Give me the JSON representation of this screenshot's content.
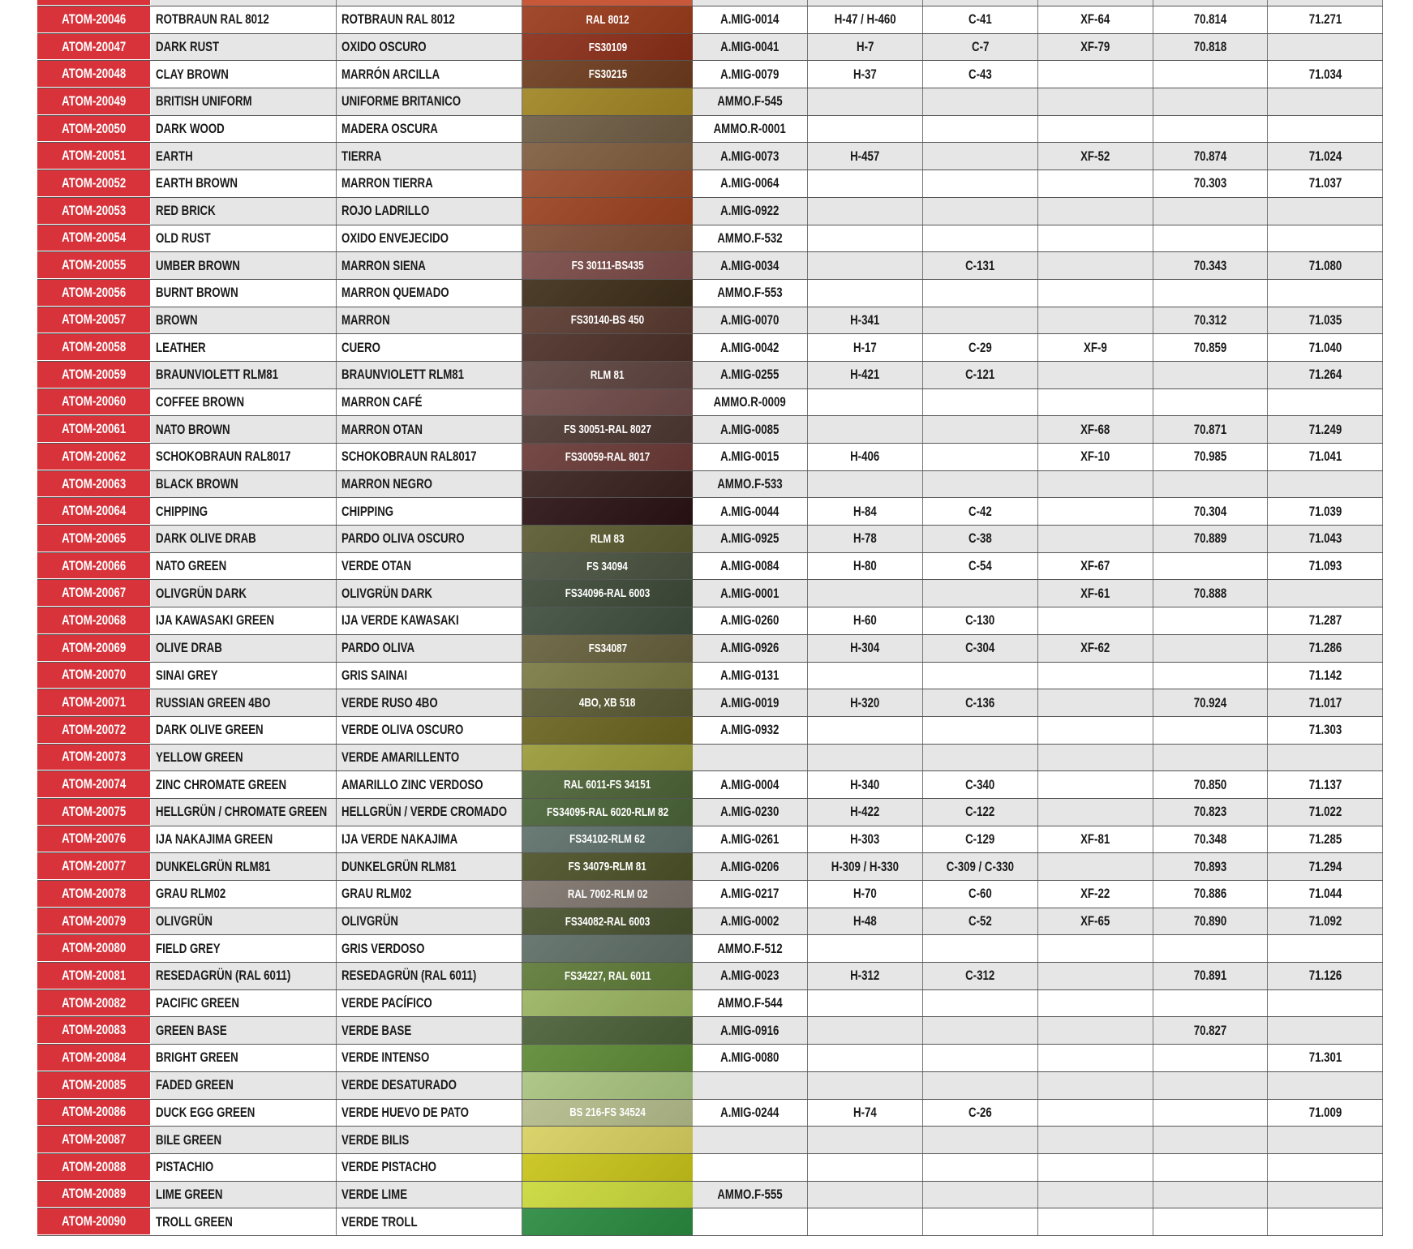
{
  "accent_color": "#d8323a",
  "partial_top_row": {
    "swatch_color": "#c8583a"
  },
  "rows": [
    {
      "code": "ATOM-20046",
      "name": "ROTBRAUN RAL 8012",
      "name_es": "ROTBRAUN RAL 8012",
      "swatch_label": "RAL 8012",
      "color": "#9a3b1c",
      "amig": "A.MIG-0014",
      "h": "H-47 / H-460",
      "c": "C-41",
      "xf": "XF-64",
      "v70": "70.814",
      "v71": "71.271"
    },
    {
      "code": "ATOM-20047",
      "name": "DARK RUST",
      "name_es": "OXIDO OSCURO",
      "swatch_label": "FS30109",
      "color": "#8a2e18",
      "amig": "A.MIG-0041",
      "h": "H-7",
      "c": "C-7",
      "xf": "XF-79",
      "v70": "70.818",
      "v71": ""
    },
    {
      "code": "ATOM-20048",
      "name": "CLAY BROWN",
      "name_es": "MARRÓN ARCILLA",
      "swatch_label": "FS30215",
      "color": "#6e3c1e",
      "amig": "A.MIG-0079",
      "h": "H-37",
      "c": "C-43",
      "xf": "",
      "v70": "",
      "v71": "71.034"
    },
    {
      "code": "ATOM-20049",
      "name": "BRITISH UNIFORM",
      "name_es": "UNIFORME BRITANICO",
      "swatch_label": "",
      "color": "#a08423",
      "amig": "AMMO.F-545",
      "h": "",
      "c": "",
      "xf": "",
      "v70": "",
      "v71": ""
    },
    {
      "code": "ATOM-20050",
      "name": "DARK WOOD",
      "name_es": "MADERA OSCURA",
      "swatch_label": "",
      "color": "#6e5c44",
      "amig": "AMMO.R-0001",
      "h": "",
      "c": "",
      "xf": "",
      "v70": "",
      "v71": ""
    },
    {
      "code": "ATOM-20051",
      "name": "EARTH",
      "name_es": "TIERRA",
      "swatch_label": "",
      "color": "#7f5d3e",
      "amig": "A.MIG-0073",
      "h": "H-457",
      "c": "",
      "xf": "XF-52",
      "v70": "70.874",
      "v71": "71.024"
    },
    {
      "code": "ATOM-20052",
      "name": "EARTH BROWN",
      "name_es": "MARRON TIERRA",
      "swatch_label": "",
      "color": "#9a4a2a",
      "amig": "A.MIG-0064",
      "h": "",
      "c": "",
      "xf": "",
      "v70": "70.303",
      "v71": "71.037"
    },
    {
      "code": "ATOM-20053",
      "name": "RED BRICK",
      "name_es": "ROJO LADRILLO",
      "swatch_label": "",
      "color": "#9a4220",
      "amig": "A.MIG-0922",
      "h": "",
      "c": "",
      "xf": "",
      "v70": "",
      "v71": ""
    },
    {
      "code": "ATOM-20054",
      "name": "OLD RUST",
      "name_es": "OXIDO ENVEJECIDO",
      "swatch_label": "",
      "color": "#7f4c34",
      "amig": "AMMO.F-532",
      "h": "",
      "c": "",
      "xf": "",
      "v70": "",
      "v71": ""
    },
    {
      "code": "ATOM-20055",
      "name": "UMBER BROWN",
      "name_es": "MARRON SIENA",
      "swatch_label": "FS 30111-BS435",
      "color": "#7a4a46",
      "amig": "A.MIG-0034",
      "h": "",
      "c": "C-131",
      "xf": "",
      "v70": "70.343",
      "v71": "71.080"
    },
    {
      "code": "ATOM-20056",
      "name": "BURNT BROWN",
      "name_es": "MARRON QUEMADO",
      "swatch_label": "",
      "color": "#3e2e1a",
      "amig": "AMMO.F-553",
      "h": "",
      "c": "",
      "xf": "",
      "v70": "",
      "v71": ""
    },
    {
      "code": "ATOM-20057",
      "name": "BROWN",
      "name_es": "MARRON",
      "swatch_label": "FS30140-BS 450",
      "color": "#5a3a30",
      "amig": "A.MIG-0070",
      "h": "H-341",
      "c": "",
      "xf": "",
      "v70": "70.312",
      "v71": "71.035"
    },
    {
      "code": "ATOM-20058",
      "name": "LEATHER",
      "name_es": "CUERO",
      "swatch_label": "",
      "color": "#4c3028",
      "amig": "A.MIG-0042",
      "h": "H-17",
      "c": "C-29",
      "xf": "XF-9",
      "v70": "70.859",
      "v71": "71.040"
    },
    {
      "code": "ATOM-20059",
      "name": "BRAUNVIOLETT RLM81",
      "name_es": "BRAUNVIOLETT RLM81",
      "swatch_label": "RLM 81",
      "color": "#5e4440",
      "amig": "A.MIG-0255",
      "h": "H-421",
      "c": "C-121",
      "xf": "",
      "v70": "",
      "v71": "71.264"
    },
    {
      "code": "ATOM-20060",
      "name": "COFFEE BROWN",
      "name_es": "MARRON CAFÉ",
      "swatch_label": "",
      "color": "#6e4a48",
      "amig": "AMMO.R-0009",
      "h": "",
      "c": "",
      "xf": "",
      "v70": "",
      "v71": ""
    },
    {
      "code": "ATOM-20061",
      "name": "NATO BROWN",
      "name_es": "MARRON OTAN",
      "swatch_label": "FS 30051-RAL 8027",
      "color": "#4e3832",
      "amig": "A.MIG-0085",
      "h": "",
      "c": "",
      "xf": "XF-68",
      "v70": "70.871",
      "v71": "71.249"
    },
    {
      "code": "ATOM-20062",
      "name": "SCHOKOBRAUN RAL8017",
      "name_es": "SCHOKOBRAUN RAL8017",
      "swatch_label": "FS30059-RAL 8017",
      "color": "#6a3a36",
      "amig": "A.MIG-0015",
      "h": "H-406",
      "c": "",
      "xf": "XF-10",
      "v70": "70.985",
      "v71": "71.041"
    },
    {
      "code": "ATOM-20063",
      "name": "BLACK BROWN",
      "name_es": "MARRON NEGRO",
      "swatch_label": "",
      "color": "#3a2220",
      "amig": "AMMO.F-533",
      "h": "",
      "c": "",
      "xf": "",
      "v70": "",
      "v71": ""
    },
    {
      "code": "ATOM-20064",
      "name": "CHIPPING",
      "name_es": "CHIPPING",
      "swatch_label": "",
      "color": "#2a1214",
      "amig": "A.MIG-0044",
      "h": "H-84",
      "c": "C-42",
      "xf": "",
      "v70": "70.304",
      "v71": "71.039"
    },
    {
      "code": "ATOM-20065",
      "name": "DARK OLIVE DRAB",
      "name_es": "PARDO OLIVA OSCURO",
      "swatch_label": "RLM 83",
      "color": "#5a5a30",
      "amig": "A.MIG-0925",
      "h": "H-78",
      "c": "C-38",
      "xf": "",
      "v70": "70.889",
      "v71": "71.043"
    },
    {
      "code": "ATOM-20066",
      "name": "NATO GREEN",
      "name_es": "VERDE OTAN",
      "swatch_label": "FS 34094",
      "color": "#4a5240",
      "amig": "A.MIG-0084",
      "h": "H-80",
      "c": "C-54",
      "xf": "XF-67",
      "v70": "",
      "v71": "71.093"
    },
    {
      "code": "ATOM-20067",
      "name": "OLIVGRÜN DARK",
      "name_es": "OLIVGRÜN DARK",
      "swatch_label": "FS34096-RAL 6003",
      "color": "#3e4a38",
      "amig": "A.MIG-0001",
      "h": "",
      "c": "",
      "xf": "XF-61",
      "v70": "70.888",
      "v71": ""
    },
    {
      "code": "ATOM-20068",
      "name": "IJA KAWASAKI GREEN",
      "name_es": "IJA VERDE KAWASAKI",
      "swatch_label": "",
      "color": "#3e4e3e",
      "amig": "A.MIG-0260",
      "h": "H-60",
      "c": "C-130",
      "xf": "",
      "v70": "",
      "v71": "71.287"
    },
    {
      "code": "ATOM-20069",
      "name": "OLIVE DRAB",
      "name_es": "PARDO OLIVA",
      "swatch_label": "FS34087",
      "color": "#66603c",
      "amig": "A.MIG-0926",
      "h": "H-304",
      "c": "C-304",
      "xf": "XF-62",
      "v70": "",
      "v71": "71.286"
    },
    {
      "code": "ATOM-20070",
      "name": "SINAI GREY",
      "name_es": "GRIS SAINAI",
      "swatch_label": "",
      "color": "#7a7a44",
      "amig": "A.MIG-0131",
      "h": "",
      "c": "",
      "xf": "",
      "v70": "",
      "v71": "71.142"
    },
    {
      "code": "ATOM-20071",
      "name": "RUSSIAN GREEN 4BO",
      "name_es": "VERDE RUSO 4BO",
      "swatch_label": "4BO, XB 518",
      "color": "#5a5a34",
      "amig": "A.MIG-0019",
      "h": "H-320",
      "c": "C-136",
      "xf": "",
      "v70": "70.924",
      "v71": "71.017"
    },
    {
      "code": "ATOM-20072",
      "name": "DARK OLIVE GREEN",
      "name_es": "VERDE OLIVA OSCURO",
      "swatch_label": "",
      "color": "#6a6420",
      "amig": "A.MIG-0932",
      "h": "",
      "c": "",
      "xf": "",
      "v70": "",
      "v71": "71.303"
    },
    {
      "code": "ATOM-20073",
      "name": "YELLOW GREEN",
      "name_es": "VERDE AMARILLENTO",
      "swatch_label": "",
      "color": "#9a9a38",
      "amig": "",
      "h": "",
      "c": "",
      "xf": "",
      "v70": "",
      "v71": ""
    },
    {
      "code": "ATOM-20074",
      "name": "ZINC CHROMATE GREEN",
      "name_es": "AMARILLO ZINC VERDOSO",
      "swatch_label": "RAL 6011-FS 34151",
      "color": "#4e6438",
      "amig": "A.MIG-0004",
      "h": "H-340",
      "c": "C-340",
      "xf": "",
      "v70": "70.850",
      "v71": "71.137"
    },
    {
      "code": "ATOM-20075",
      "name": "HELLGRÜN / CHROMATE GREEN",
      "name_es": "HELLGRÜN / VERDE CROMADO",
      "swatch_label": "FS34095-RAL 6020-RLM 82",
      "color": "#4a6438",
      "amig": "A.MIG-0230",
      "h": "H-422",
      "c": "C-122",
      "xf": "",
      "v70": "70.823",
      "v71": "71.022"
    },
    {
      "code": "ATOM-20076",
      "name": "IJA NAKAJIMA GREEN",
      "name_es": "IJA VERDE NAKAJIMA",
      "swatch_label": "FS34102-RLM 62",
      "color": "#5e706a",
      "amig": "A.MIG-0261",
      "h": "H-303",
      "c": "C-129",
      "xf": "XF-81",
      "v70": "70.348",
      "v71": "71.285"
    },
    {
      "code": "ATOM-20077",
      "name": "DUNKELGRÜN RLM81",
      "name_es": "DUNKELGRÜN RLM81",
      "swatch_label": "FS 34079-RLM 81",
      "color": "#4c5228",
      "amig": "A.MIG-0206",
      "h": "H-309 / H-330",
      "c": "C-309 / C-330",
      "xf": "",
      "v70": "70.893",
      "v71": "71.294"
    },
    {
      "code": "ATOM-20078",
      "name": "GRAU RLM02",
      "name_es": "GRAU RLM02",
      "swatch_label": "RAL 7002-RLM 02",
      "color": "#7e746c",
      "amig": "A.MIG-0217",
      "h": "H-70",
      "c": "C-60",
      "xf": "XF-22",
      "v70": "70.886",
      "v71": "71.044"
    },
    {
      "code": "ATOM-20079",
      "name": "OLIVGRÜN",
      "name_es": "OLIVGRÜN",
      "swatch_label": "FS34082-RAL 6003",
      "color": "#48522e",
      "amig": "A.MIG-0002",
      "h": "H-48",
      "c": "C-52",
      "xf": "XF-65",
      "v70": "70.890",
      "v71": "71.092"
    },
    {
      "code": "ATOM-20080",
      "name": "FIELD GREY",
      "name_es": "GRIS VERDOSO",
      "swatch_label": "",
      "color": "#5e6e66",
      "amig": "AMMO.F-512",
      "h": "",
      "c": "",
      "xf": "",
      "v70": "",
      "v71": ""
    },
    {
      "code": "ATOM-20081",
      "name": "RESEDAGRÜN (RAL 6011)",
      "name_es": "RESEDAGRÜN (RAL 6011)",
      "swatch_label": "FS34227, RAL 6011",
      "color": "#5e7a38",
      "amig": "A.MIG-0023",
      "h": "H-312",
      "c": "C-312",
      "xf": "",
      "v70": "70.891",
      "v71": "71.126"
    },
    {
      "code": "ATOM-20082",
      "name": "PACIFIC GREEN",
      "name_es": "VERDE PACÍFICO",
      "swatch_label": "",
      "color": "#9ab460",
      "amig": "AMMO.F-544",
      "h": "",
      "c": "",
      "xf": "",
      "v70": "",
      "v71": ""
    },
    {
      "code": "ATOM-20083",
      "name": "GREEN BASE",
      "name_es": "VERDE BASE",
      "swatch_label": "",
      "color": "#4a6038",
      "amig": "A.MIG-0916",
      "h": "",
      "c": "",
      "xf": "",
      "v70": "70.827",
      "v71": ""
    },
    {
      "code": "ATOM-20084",
      "name": "BRIGHT GREEN",
      "name_es": "VERDE INTENSO",
      "swatch_label": "",
      "color": "#5e8a36",
      "amig": "A.MIG-0080",
      "h": "",
      "c": "",
      "xf": "",
      "v70": "",
      "v71": "71.301"
    },
    {
      "code": "ATOM-20085",
      "name": "FADED GREEN",
      "name_es": "VERDE DESATURADO",
      "swatch_label": "",
      "color": "#a8c480",
      "amig": "",
      "h": "",
      "c": "",
      "xf": "",
      "v70": "",
      "v71": ""
    },
    {
      "code": "ATOM-20086",
      "name": "DUCK EGG GREEN",
      "name_es": "VERDE HUEVO DE PATO",
      "swatch_label": "BS 216-FS 34524",
      "color": "#b4bc8c",
      "amig": "A.MIG-0244",
      "h": "H-74",
      "c": "C-26",
      "xf": "",
      "v70": "",
      "v71": "71.009"
    },
    {
      "code": "ATOM-20087",
      "name": "BILE GREEN",
      "name_es": "VERDE BILIS",
      "swatch_label": "",
      "color": "#d8d060",
      "amig": "",
      "h": "",
      "c": "",
      "xf": "",
      "v70": "",
      "v71": ""
    },
    {
      "code": "ATOM-20088",
      "name": "PISTACHIO",
      "name_es": "VERDE PISTACHO",
      "swatch_label": "",
      "color": "#c8c41a",
      "amig": "",
      "h": "",
      "c": "",
      "xf": "",
      "v70": "",
      "v71": ""
    },
    {
      "code": "ATOM-20089",
      "name": "LIME GREEN",
      "name_es": "VERDE LIME",
      "swatch_label": "",
      "color": "#cad83a",
      "amig": "AMMO.F-555",
      "h": "",
      "c": "",
      "xf": "",
      "v70": "",
      "v71": ""
    },
    {
      "code": "ATOM-20090",
      "name": "TROLL GREEN",
      "name_es": "VERDE TROLL",
      "swatch_label": "",
      "color": "#2a8a40",
      "amig": "",
      "h": "",
      "c": "",
      "xf": "",
      "v70": "",
      "v71": ""
    }
  ]
}
